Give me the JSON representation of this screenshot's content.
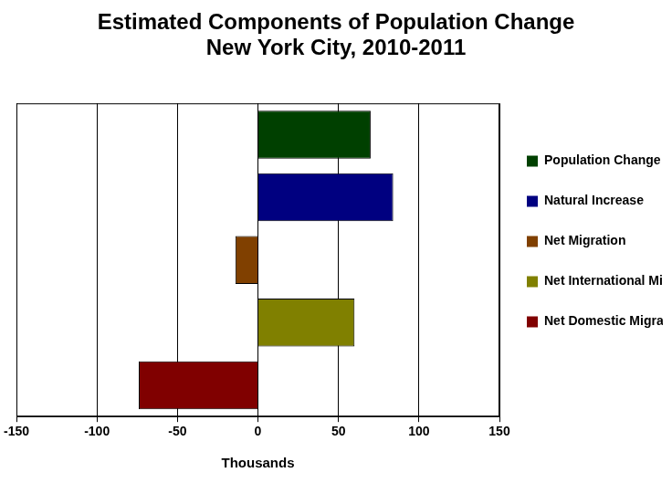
{
  "chart_data": {
    "type": "bar",
    "orientation": "horizontal",
    "title": [
      "Estimated Components of Population Change",
      "New York City, 2010-2011"
    ],
    "xlabel": "Thousands",
    "categories": [
      "Population Change",
      "Natural Increase",
      "Net Migration",
      "Net International Migration",
      "Net Domestic Migration"
    ],
    "values": [
      70,
      84,
      -14,
      60,
      -74
    ],
    "colors": [
      "#004000",
      "#000080",
      "#804000",
      "#808000",
      "#800000"
    ],
    "xlim": [
      -150,
      150
    ],
    "xticks": [
      -150,
      -100,
      -50,
      0,
      50,
      100,
      150
    ],
    "grid": true,
    "legend": "right",
    "tick_labels": "x"
  }
}
